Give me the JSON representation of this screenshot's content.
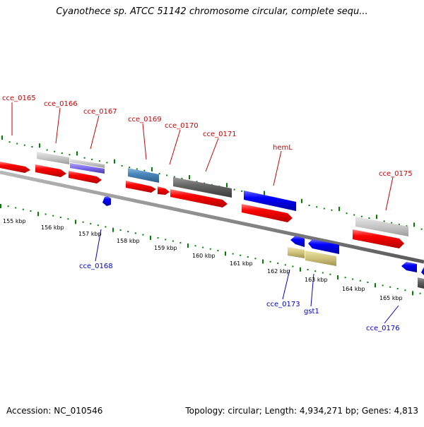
{
  "title": "Cyanothece sp. ATCC 51142 chromosome circular, complete sequ...",
  "footer": {
    "accession": "Accession: NC_010546",
    "summary": "Topology: circular; Length: 4,934,271 bp; Genes: 4,813"
  },
  "scale": {
    "unit": "kbp",
    "labels": [
      "155 kbp",
      "156 kbp",
      "157 kbp",
      "158 kbp",
      "159 kbp",
      "160 kbp",
      "161 kbp",
      "162 kbp",
      "163 kbp",
      "164 kbp",
      "165 kbp"
    ]
  },
  "genes": {
    "forward_strand": [
      "cce_0165",
      "cce_0166",
      "cce_0167",
      "cce_0169",
      "cce_0170",
      "cce_0171",
      "hemL",
      "cce_0175"
    ],
    "reverse_strand": [
      "cce_0168",
      "cce_0173",
      "gst1",
      "cce_0176"
    ]
  },
  "colors": {
    "forward_label": "#cc0000",
    "reverse_label": "#0000cc",
    "cds": "#ff0000",
    "tick_green": "#008000",
    "backbone": "#8c8c8c"
  }
}
